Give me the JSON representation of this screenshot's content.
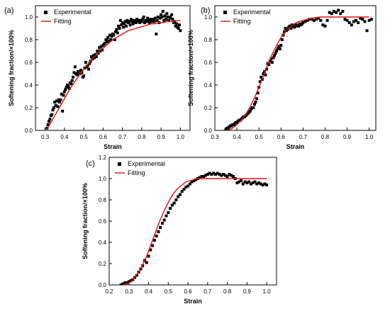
{
  "chart_data": [
    {
      "panel_label": "(a)",
      "type": "scatter",
      "xlabel": "Strain",
      "ylabel": "Softening fraction/×100%",
      "xlim": [
        0.25,
        1.05
      ],
      "ylim": [
        0,
        1.1
      ],
      "xticks": [
        0.3,
        0.4,
        0.5,
        0.6,
        0.7,
        0.8,
        0.9,
        1.0
      ],
      "yticks": [
        0.0,
        0.2,
        0.4,
        0.6,
        0.8,
        1.0
      ],
      "xtick_labels": [
        "0.3",
        "0.4",
        "0.5",
        "0.6",
        "0.7",
        "0.8",
        "0.9",
        "1.0"
      ],
      "ytick_labels": [
        "0.0",
        "0.2",
        "0.4",
        "0.6",
        "0.8",
        "1.0"
      ],
      "legend": {
        "position": "top-left",
        "entries": [
          "Experimental",
          "Fitting"
        ]
      },
      "series": [
        {
          "name": "Experimental",
          "x": [
            0.31,
            0.315,
            0.32,
            0.325,
            0.33,
            0.335,
            0.34,
            0.345,
            0.35,
            0.355,
            0.36,
            0.365,
            0.37,
            0.375,
            0.38,
            0.385,
            0.39,
            0.395,
            0.4,
            0.405,
            0.41,
            0.415,
            0.42,
            0.425,
            0.43,
            0.435,
            0.44,
            0.445,
            0.45,
            0.455,
            0.46,
            0.465,
            0.47,
            0.475,
            0.48,
            0.485,
            0.49,
            0.495,
            0.5,
            0.505,
            0.51,
            0.515,
            0.52,
            0.525,
            0.53,
            0.535,
            0.54,
            0.545,
            0.55,
            0.555,
            0.56,
            0.565,
            0.57,
            0.575,
            0.58,
            0.585,
            0.59,
            0.595,
            0.6,
            0.605,
            0.61,
            0.615,
            0.62,
            0.625,
            0.63,
            0.635,
            0.64,
            0.645,
            0.65,
            0.655,
            0.66,
            0.665,
            0.67,
            0.675,
            0.68,
            0.685,
            0.69,
            0.695,
            0.7,
            0.705,
            0.71,
            0.715,
            0.72,
            0.725,
            0.73,
            0.735,
            0.74,
            0.745,
            0.75,
            0.755,
            0.76,
            0.765,
            0.77,
            0.775,
            0.78,
            0.785,
            0.79,
            0.795,
            0.8,
            0.805,
            0.81,
            0.815,
            0.82,
            0.825,
            0.83,
            0.835,
            0.84,
            0.845,
            0.85,
            0.855,
            0.86,
            0.865,
            0.87,
            0.875,
            0.88,
            0.885,
            0.89,
            0.895,
            0.9,
            0.905,
            0.91,
            0.915,
            0.92,
            0.925,
            0.93,
            0.935,
            0.94,
            0.945,
            0.95,
            0.955,
            0.96,
            0.965,
            0.97,
            0.975,
            0.98,
            0.985,
            0.99,
            0.995,
            1.0
          ],
          "y": [
            0.02,
            0.05,
            0.08,
            0.1,
            0.13,
            0.14,
            0.18,
            0.2,
            0.25,
            0.22,
            0.26,
            0.21,
            0.27,
            0.25,
            0.27,
            0.32,
            0.17,
            0.31,
            0.34,
            0.36,
            0.38,
            0.4,
            0.39,
            0.37,
            0.42,
            0.41,
            0.44,
            0.47,
            0.51,
            0.56,
            0.5,
            0.49,
            0.52,
            0.5,
            0.5,
            0.53,
            0.51,
            0.47,
            0.48,
            0.55,
            0.6,
            0.56,
            0.57,
            0.54,
            0.59,
            0.61,
            0.65,
            0.63,
            0.66,
            0.64,
            0.67,
            0.65,
            0.7,
            0.68,
            0.73,
            0.7,
            0.74,
            0.71,
            0.75,
            0.76,
            0.77,
            0.8,
            0.78,
            0.82,
            0.79,
            0.84,
            0.8,
            0.83,
            0.85,
            0.84,
            0.8,
            0.87,
            0.89,
            0.86,
            0.92,
            0.9,
            0.97,
            0.93,
            0.95,
            0.91,
            0.94,
            0.96,
            0.92,
            0.97,
            0.95,
            0.96,
            0.93,
            0.98,
            0.96,
            0.94,
            0.97,
            0.96,
            0.95,
            0.98,
            0.96,
            0.97,
            0.95,
            0.97,
            0.96,
            0.98,
            1.0,
            0.95,
            0.97,
            0.96,
            0.99,
            0.97,
            0.95,
            0.98,
            0.96,
            0.97,
            0.98,
            0.96,
            0.99,
            0.85,
            0.97,
            1.0,
            0.95,
            0.99,
            1.02,
            1.0,
            1.05,
            0.97,
            1.01,
            0.98,
            1.03,
            1.0,
            0.97,
            1.0,
            0.99,
            1.02,
            0.98,
            0.95,
            0.96,
            0.92,
            0.94,
            0.91,
            0.9,
            0.93,
            0.88
          ]
        },
        {
          "name": "Fitting",
          "x": [
            0.31,
            0.33,
            0.35,
            0.37,
            0.39,
            0.41,
            0.43,
            0.45,
            0.47,
            0.49,
            0.51,
            0.53,
            0.55,
            0.57,
            0.59,
            0.61,
            0.63,
            0.65,
            0.67,
            0.69,
            0.71,
            0.73,
            0.75,
            0.77,
            0.79,
            0.81,
            0.83,
            0.85,
            0.87,
            0.89,
            0.91,
            0.93,
            0.95,
            0.97,
            0.99,
            1.0
          ],
          "y": [
            0.01,
            0.07,
            0.13,
            0.19,
            0.25,
            0.31,
            0.37,
            0.42,
            0.47,
            0.52,
            0.56,
            0.6,
            0.64,
            0.68,
            0.71,
            0.74,
            0.77,
            0.8,
            0.82,
            0.84,
            0.86,
            0.88,
            0.89,
            0.9,
            0.91,
            0.92,
            0.93,
            0.94,
            0.94,
            0.95,
            0.95,
            0.96,
            0.96,
            0.96,
            0.97,
            0.97
          ]
        }
      ]
    },
    {
      "panel_label": "(b)",
      "type": "scatter",
      "xlabel": "Strain",
      "ylabel": "Softening fraction/×100%",
      "xlim": [
        0.3,
        1.03
      ],
      "ylim": [
        0,
        1.1
      ],
      "xticks": [
        0.3,
        0.4,
        0.5,
        0.6,
        0.7,
        0.8,
        0.9,
        1.0
      ],
      "yticks": [
        0.0,
        0.2,
        0.4,
        0.6,
        0.8,
        1.0
      ],
      "xtick_labels": [
        "0.3",
        "0.4",
        "0.5",
        "0.6",
        "0.7",
        "0.8",
        "0.9",
        "1.0"
      ],
      "ytick_labels": [
        "0.0",
        "0.2",
        "0.4",
        "0.6",
        "0.8",
        "1.0"
      ],
      "legend": {
        "position": "top-left",
        "entries": [
          "Experimental",
          "Fitting"
        ]
      },
      "series": [
        {
          "name": "Experimental",
          "x": [
            0.35,
            0.355,
            0.36,
            0.365,
            0.37,
            0.375,
            0.38,
            0.385,
            0.39,
            0.395,
            0.4,
            0.405,
            0.41,
            0.415,
            0.42,
            0.425,
            0.43,
            0.435,
            0.44,
            0.445,
            0.45,
            0.455,
            0.46,
            0.465,
            0.47,
            0.475,
            0.48,
            0.485,
            0.49,
            0.495,
            0.5,
            0.505,
            0.51,
            0.515,
            0.52,
            0.525,
            0.53,
            0.535,
            0.54,
            0.545,
            0.55,
            0.555,
            0.56,
            0.565,
            0.57,
            0.575,
            0.58,
            0.585,
            0.59,
            0.595,
            0.6,
            0.605,
            0.61,
            0.615,
            0.62,
            0.625,
            0.63,
            0.635,
            0.64,
            0.645,
            0.65,
            0.655,
            0.66,
            0.665,
            0.67,
            0.675,
            0.68,
            0.685,
            0.69,
            0.695,
            0.7,
            0.71,
            0.72,
            0.73,
            0.74,
            0.75,
            0.76,
            0.77,
            0.78,
            0.79,
            0.8,
            0.81,
            0.82,
            0.83,
            0.84,
            0.85,
            0.86,
            0.87,
            0.88,
            0.89,
            0.9,
            0.91,
            0.92,
            0.93,
            0.94,
            0.95,
            0.96,
            0.97,
            0.98,
            0.99,
            1.0,
            1.01
          ],
          "y": [
            0.01,
            0.02,
            0.02,
            0.03,
            0.04,
            0.04,
            0.05,
            0.05,
            0.06,
            0.07,
            0.07,
            0.08,
            0.09,
            0.09,
            0.1,
            0.11,
            0.12,
            0.12,
            0.13,
            0.14,
            0.15,
            0.16,
            0.17,
            0.19,
            0.2,
            0.2,
            0.23,
            0.25,
            0.28,
            0.33,
            0.38,
            0.43,
            0.47,
            0.45,
            0.5,
            0.52,
            0.49,
            0.54,
            0.59,
            0.58,
            0.61,
            0.63,
            0.6,
            0.64,
            0.66,
            0.68,
            0.7,
            0.72,
            0.74,
            0.72,
            0.75,
            0.8,
            0.84,
            0.87,
            0.9,
            0.88,
            0.89,
            0.91,
            0.92,
            0.9,
            0.93,
            0.92,
            0.91,
            0.93,
            0.92,
            0.93,
            0.92,
            0.94,
            0.93,
            0.94,
            0.95,
            0.96,
            0.97,
            0.98,
            0.98,
            0.97,
            0.98,
            0.99,
            0.97,
            0.93,
            0.92,
            0.97,
            1.04,
            1.03,
            1.05,
            1.04,
            1.06,
            1.03,
            1.05,
            0.98,
            0.97,
            0.95,
            0.93,
            0.96,
            0.97,
            0.95,
            0.99,
            0.98,
            0.96,
            0.88,
            0.97,
            0.98
          ]
        },
        {
          "name": "Fitting",
          "x": [
            0.36,
            0.38,
            0.4,
            0.42,
            0.44,
            0.46,
            0.48,
            0.5,
            0.52,
            0.54,
            0.56,
            0.58,
            0.6,
            0.62,
            0.64,
            0.66,
            0.68,
            0.7,
            0.72,
            0.74,
            0.76,
            0.78,
            0.8,
            0.85,
            0.9,
            0.95,
            1.0
          ],
          "y": [
            0.0,
            0.02,
            0.05,
            0.09,
            0.14,
            0.21,
            0.29,
            0.38,
            0.48,
            0.58,
            0.67,
            0.75,
            0.82,
            0.87,
            0.91,
            0.94,
            0.96,
            0.97,
            0.98,
            0.99,
            0.995,
            1.0,
            1.0,
            1.0,
            1.0,
            1.0,
            1.0
          ]
        }
      ]
    },
    {
      "panel_label": "(c)",
      "type": "scatter",
      "xlabel": "Strain",
      "ylabel": "Softening fraction/×100%",
      "xlim": [
        0.2,
        1.05
      ],
      "ylim": [
        0,
        1.2
      ],
      "xticks": [
        0.2,
        0.3,
        0.4,
        0.5,
        0.6,
        0.7,
        0.8,
        0.9,
        1.0
      ],
      "yticks": [
        0.0,
        0.2,
        0.4,
        0.6,
        0.8,
        1.0,
        1.2
      ],
      "xtick_labels": [
        "0.2",
        "0.3",
        "0.4",
        "0.5",
        "0.6",
        "0.7",
        "0.8",
        "0.9",
        "1.0"
      ],
      "ytick_labels": [
        "0.0",
        "0.2",
        "0.4",
        "0.6",
        "0.8",
        "1.0",
        "1.2"
      ],
      "legend": {
        "position": "top-left",
        "entries": [
          "Experimental",
          "Fitting"
        ]
      },
      "series": [
        {
          "name": "Experimental",
          "x": [
            0.26,
            0.27,
            0.28,
            0.29,
            0.3,
            0.31,
            0.32,
            0.33,
            0.34,
            0.35,
            0.36,
            0.37,
            0.38,
            0.39,
            0.4,
            0.41,
            0.42,
            0.43,
            0.44,
            0.45,
            0.46,
            0.47,
            0.48,
            0.49,
            0.5,
            0.51,
            0.52,
            0.53,
            0.54,
            0.55,
            0.56,
            0.57,
            0.58,
            0.59,
            0.6,
            0.61,
            0.62,
            0.63,
            0.64,
            0.65,
            0.66,
            0.67,
            0.68,
            0.69,
            0.7,
            0.71,
            0.72,
            0.73,
            0.74,
            0.75,
            0.76,
            0.77,
            0.78,
            0.79,
            0.8,
            0.81,
            0.82,
            0.83,
            0.84,
            0.85,
            0.86,
            0.87,
            0.88,
            0.89,
            0.9,
            0.91,
            0.92,
            0.93,
            0.94,
            0.95,
            0.96,
            0.97,
            0.98,
            0.99,
            1.0
          ],
          "y": [
            0.0,
            0.01,
            0.02,
            0.02,
            0.03,
            0.04,
            0.05,
            0.07,
            0.09,
            0.12,
            0.15,
            0.18,
            0.23,
            0.21,
            0.27,
            0.33,
            0.37,
            0.42,
            0.46,
            0.5,
            0.54,
            0.58,
            0.61,
            0.65,
            0.68,
            0.72,
            0.75,
            0.77,
            0.8,
            0.83,
            0.85,
            0.88,
            0.9,
            0.92,
            0.93,
            0.95,
            0.97,
            0.98,
            0.99,
            1.0,
            1.01,
            1.02,
            1.02,
            1.03,
            1.04,
            1.05,
            1.04,
            1.05,
            1.04,
            1.05,
            1.04,
            1.03,
            1.04,
            1.03,
            1.02,
            1.04,
            1.03,
            1.02,
            1.0,
            0.96,
            0.97,
            0.98,
            0.95,
            0.97,
            0.96,
            0.97,
            0.95,
            0.96,
            0.97,
            0.95,
            0.96,
            0.95,
            0.94,
            0.95,
            0.94
          ]
        },
        {
          "name": "Fitting",
          "x": [
            0.27,
            0.29,
            0.31,
            0.33,
            0.35,
            0.37,
            0.39,
            0.41,
            0.43,
            0.45,
            0.47,
            0.49,
            0.51,
            0.53,
            0.55,
            0.57,
            0.59,
            0.61,
            0.63,
            0.65,
            0.7,
            0.75,
            0.8,
            0.85,
            0.9,
            0.95,
            1.0
          ],
          "y": [
            0.0,
            0.01,
            0.03,
            0.07,
            0.12,
            0.19,
            0.27,
            0.37,
            0.47,
            0.57,
            0.66,
            0.74,
            0.81,
            0.87,
            0.91,
            0.94,
            0.97,
            0.98,
            0.99,
            1.0,
            1.0,
            1.0,
            1.0,
            1.0,
            1.0,
            1.0,
            1.0
          ]
        }
      ]
    }
  ]
}
